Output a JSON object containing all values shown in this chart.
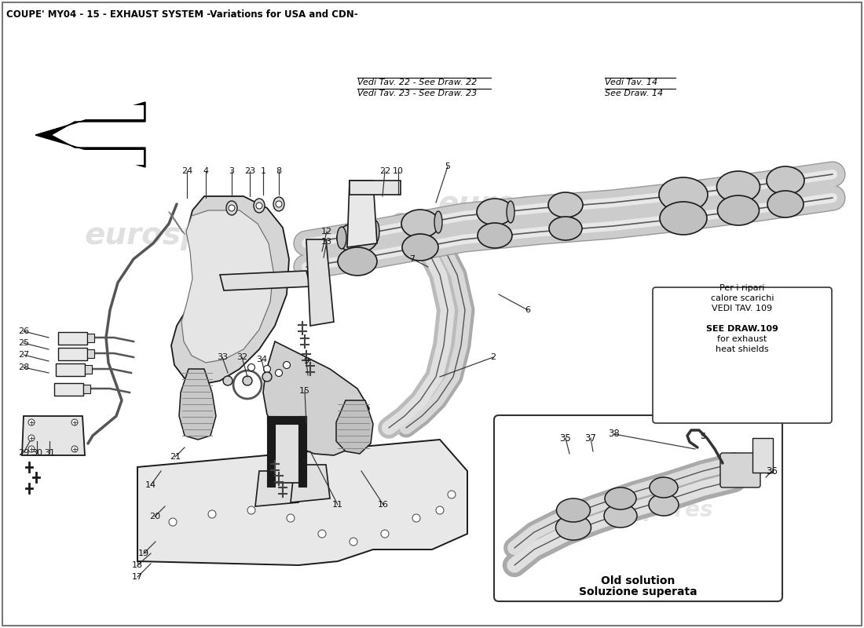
{
  "title": "COUPE' MY04 - 15 - EXHAUST SYSTEM -Variations for USA and CDN-",
  "title_fontsize": 8.5,
  "bg_color": "#ffffff",
  "text_color": "#000000",
  "ref_note_upper_line1": "Per i ripari",
  "ref_note_upper_line2": "calore scarichi",
  "ref_note_upper_line3": "VEDI TAV. 109",
  "ref_note_upper_line4": "",
  "ref_note_upper_line5": "SEE DRAW.109",
  "ref_note_upper_line6": "for exhaust",
  "ref_note_upper_line7": "heat shields",
  "ref_note_lower_it": "Soluzione superata",
  "ref_note_lower_en": "Old solution",
  "vedi_tav_22": "Vedi Tav. 22 - See Draw. 22",
  "vedi_tav_23": "Vedi Tav. 23 - See Draw. 23",
  "vedi_tav_14_it": "Vedi Tav. 14",
  "vedi_tav_14_en": "See Draw. 14",
  "watermark": "eurospares"
}
